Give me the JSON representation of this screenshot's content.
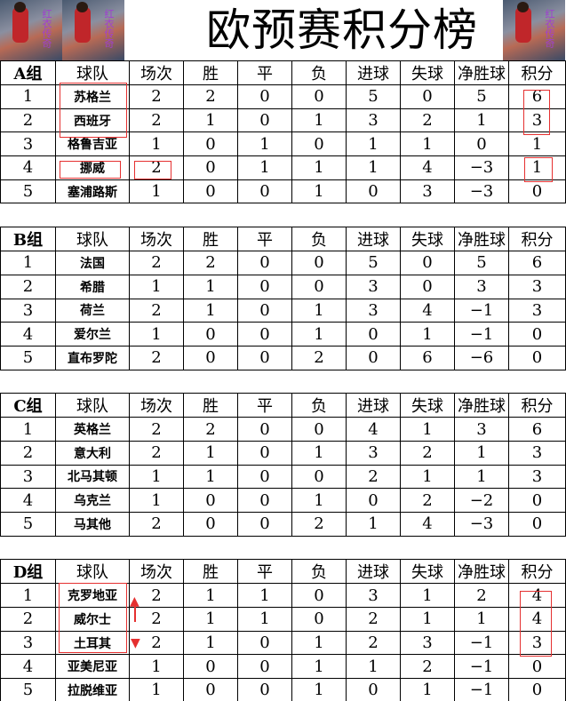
{
  "title": "欧预赛积分榜",
  "headers": [
    "球队",
    "场次",
    "胜",
    "平",
    "负",
    "进球",
    "失球",
    "净胜球",
    "积分"
  ],
  "logo_text": "红衣传奇",
  "groups": [
    {
      "label": "A组",
      "rows": [
        [
          "1",
          "苏格兰",
          "2",
          "2",
          "0",
          "0",
          "5",
          "0",
          "5",
          "6"
        ],
        [
          "2",
          "西班牙",
          "2",
          "1",
          "0",
          "1",
          "3",
          "2",
          "1",
          "3"
        ],
        [
          "3",
          "格鲁吉亚",
          "1",
          "0",
          "1",
          "0",
          "1",
          "1",
          "0",
          "1"
        ],
        [
          "4",
          "挪威",
          "2",
          "0",
          "1",
          "1",
          "1",
          "4",
          "−3",
          "1"
        ],
        [
          "5",
          "塞浦路斯",
          "1",
          "0",
          "0",
          "1",
          "0",
          "3",
          "−3",
          "0"
        ]
      ]
    },
    {
      "label": "B组",
      "rows": [
        [
          "1",
          "法国",
          "2",
          "2",
          "0",
          "0",
          "5",
          "0",
          "5",
          "6"
        ],
        [
          "2",
          "希腊",
          "1",
          "1",
          "0",
          "0",
          "3",
          "0",
          "3",
          "3"
        ],
        [
          "3",
          "荷兰",
          "2",
          "1",
          "0",
          "1",
          "3",
          "4",
          "−1",
          "3"
        ],
        [
          "4",
          "爱尔兰",
          "1",
          "0",
          "0",
          "1",
          "0",
          "1",
          "−1",
          "0"
        ],
        [
          "5",
          "直布罗陀",
          "2",
          "0",
          "0",
          "2",
          "0",
          "6",
          "−6",
          "0"
        ]
      ]
    },
    {
      "label": "C组",
      "rows": [
        [
          "1",
          "英格兰",
          "2",
          "2",
          "0",
          "0",
          "4",
          "1",
          "3",
          "6"
        ],
        [
          "2",
          "意大利",
          "2",
          "1",
          "0",
          "1",
          "3",
          "2",
          "1",
          "3"
        ],
        [
          "3",
          "北马其顿",
          "1",
          "1",
          "0",
          "0",
          "2",
          "1",
          "1",
          "3"
        ],
        [
          "4",
          "乌克兰",
          "1",
          "0",
          "0",
          "1",
          "0",
          "2",
          "−2",
          "0"
        ],
        [
          "5",
          "马其他",
          "2",
          "0",
          "0",
          "2",
          "1",
          "4",
          "−3",
          "0"
        ]
      ]
    },
    {
      "label": "D组",
      "rows": [
        [
          "1",
          "克罗地亚",
          "2",
          "1",
          "1",
          "0",
          "3",
          "1",
          "2",
          "4"
        ],
        [
          "2",
          "威尔士",
          "2",
          "1",
          "1",
          "0",
          "2",
          "1",
          "1",
          "4"
        ],
        [
          "3",
          "土耳其",
          "2",
          "1",
          "0",
          "1",
          "2",
          "3",
          "−1",
          "3"
        ],
        [
          "4",
          "亚美尼亚",
          "1",
          "0",
          "0",
          "1",
          "1",
          "2",
          "−1",
          "0"
        ],
        [
          "5",
          "拉脱维亚",
          "1",
          "0",
          "0",
          "1",
          "0",
          "1",
          "−1",
          "0"
        ]
      ]
    }
  ],
  "annotation_color": "#e53030"
}
